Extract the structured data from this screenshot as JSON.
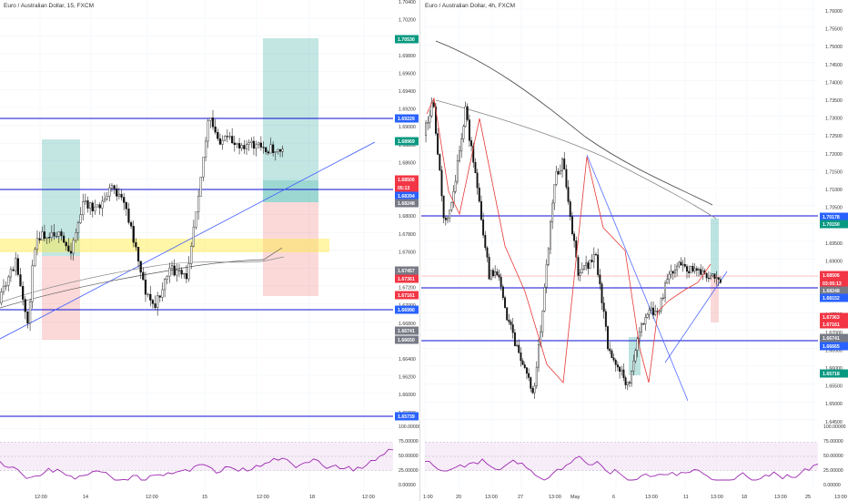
{
  "left": {
    "header": "Euro / Australian Dollar, 15, FXCM",
    "price_ticks": [
      "1.70400",
      "1.70200",
      "1.70000",
      "1.69800",
      "1.69600",
      "1.69400",
      "1.69200",
      "1.69000",
      "1.68800",
      "1.68600",
      "1.68400",
      "1.68200",
      "1.68000",
      "1.67800",
      "1.67600",
      "1.67400",
      "1.67200",
      "1.67000",
      "1.66800",
      "1.66600",
      "1.66400",
      "1.66200",
      "1.66000",
      "1.65800"
    ],
    "price_labels": [
      {
        "text": "1.70530",
        "color": "#089981"
      },
      {
        "text": "1.69229",
        "color": "#2962ff"
      },
      {
        "text": "1.68969",
        "color": "#089981"
      },
      {
        "text": "1.68506",
        "color": "#f23645"
      },
      {
        "text": "05:13",
        "color": "#f23645"
      },
      {
        "text": "1.68394",
        "color": "#2962ff"
      },
      {
        "text": "1.68248",
        "color": "#787b86"
      },
      {
        "text": "1.67457",
        "color": "#787b86"
      },
      {
        "text": "1.67361",
        "color": "#f23645"
      },
      {
        "text": "1.67161",
        "color": "#f23645"
      },
      {
        "text": "1.66990",
        "color": "#2962ff"
      },
      {
        "text": "1.66741",
        "color": "#787b86"
      },
      {
        "text": "1.66650",
        "color": "#787b86"
      },
      {
        "text": "1.65739",
        "color": "#2962ff"
      }
    ],
    "time_ticks": [
      "12:00",
      "14",
      "12:00",
      "15",
      "12:00",
      "18",
      "12:00"
    ],
    "osc_ticks": [
      "100.00000",
      "75.00000",
      "50.00000",
      "25.00000",
      "0.00000"
    ]
  },
  "right": {
    "header": "Euro / Australian Dollar, 4h, FXCM",
    "price_ticks": [
      "1.76000",
      "1.75500",
      "1.75000",
      "1.74500",
      "1.74000",
      "1.73500",
      "1.73000",
      "1.72500",
      "1.72000",
      "1.71500",
      "1.71000",
      "1.70500",
      "1.70000",
      "1.69500",
      "1.69000",
      "1.68500",
      "1.68000",
      "1.67500",
      "1.67000",
      "1.66500",
      "1.66000",
      "1.65500",
      "1.65000",
      "1.64500"
    ],
    "price_labels": [
      {
        "text": "1.70178",
        "color": "#2962ff"
      },
      {
        "text": "1.70150",
        "color": "#089981"
      },
      {
        "text": "1.68506",
        "color": "#f23645"
      },
      {
        "text": "03:05:13",
        "color": "#f23645"
      },
      {
        "text": "1.68248",
        "color": "#787b86"
      },
      {
        "text": "1.68152",
        "color": "#2962ff"
      },
      {
        "text": "1.67363",
        "color": "#f23645"
      },
      {
        "text": "1.67161",
        "color": "#f23645"
      },
      {
        "text": "1.66741",
        "color": "#787b86"
      },
      {
        "text": "1.66665",
        "color": "#2962ff"
      },
      {
        "text": "1.65718",
        "color": "#089981"
      }
    ],
    "time_ticks": [
      "1:00",
      "20",
      "13:00",
      "27",
      "13:00",
      "May",
      "6",
      "13:00",
      "11",
      "13:00",
      "18",
      "13:00",
      "25",
      "13:00"
    ],
    "osc_ticks": [
      "100.00000",
      "75.00000",
      "50.00000",
      "25.00000",
      "0.00000"
    ]
  },
  "colors": {
    "up": "#089981",
    "down": "#f23645",
    "level": "#0d0dd6",
    "trend": "#3d5afe",
    "grid": "#f0f3fa",
    "target": "#26a69a",
    "stop": "#ef5350",
    "zone": "#ffeb3b",
    "osc": "#9c27b0"
  }
}
